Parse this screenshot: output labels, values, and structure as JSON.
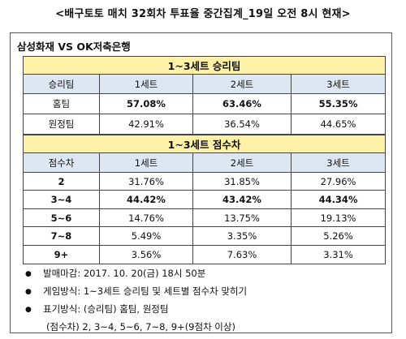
{
  "title": "<배구토토 매치 32회차 투표율 중간집계_19일 오전 8시 현재>",
  "match": "삼성화재 VS OK저축은행",
  "table1": {
    "section_title": "1~3세트 승리팀",
    "headers": [
      "승리팀",
      "1세트",
      "2세트",
      "3세트"
    ],
    "rows": [
      {
        "label": "홈팀",
        "values": [
          "57.08%",
          "63.46%",
          "55.35%"
        ]
      },
      {
        "label": "원정팀",
        "values": [
          "42.91%",
          "36.54%",
          "44.65%"
        ]
      }
    ]
  },
  "table2": {
    "section_title": "1~3세트 점수차",
    "headers": [
      "점수차",
      "1세트",
      "2세트",
      "3세트"
    ],
    "rows": [
      {
        "label": "2",
        "values": [
          "31.76%",
          "31.85%",
          "27.96%"
        ]
      },
      {
        "label": "3~4",
        "values": [
          "44.42%",
          "43.42%",
          "44.34%"
        ]
      },
      {
        "label": "5~6",
        "values": [
          "14.76%",
          "13.75%",
          "19.13%"
        ]
      },
      {
        "label": "7~8",
        "values": [
          "5.49%",
          "3.35%",
          "5.26%"
        ]
      },
      {
        "label": "9+",
        "values": [
          "3.56%",
          "7.63%",
          "3.31%"
        ]
      }
    ]
  },
  "notes": [
    "발매마감: 2017. 10. 20(금) 18시 50분",
    "게임방식: 1~3세트 승리팀 및 세트별 점수차 맞히기",
    "표기방식: (승리팀) 홈팀, 원정팀",
    "(점수차) 2, 3~4, 5~6, 7~8, 9+(9점차 이상)"
  ],
  "icons": {
    "bullet": "bullet-icon"
  }
}
